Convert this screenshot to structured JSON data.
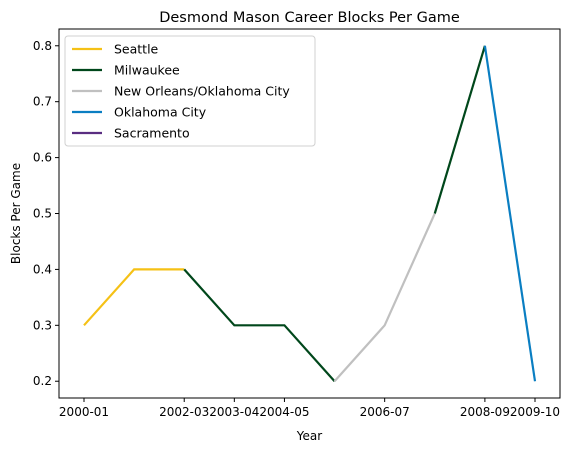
{
  "chart_data": {
    "type": "line",
    "title": "Desmond Mason Career Blocks Per Game",
    "xlabel": "Year",
    "ylabel": "Blocks Per Game",
    "x": [
      "2000-01",
      "2001-02",
      "2002-03",
      "2003-04",
      "2004-05",
      "2005-06",
      "2006-07",
      "2007-08",
      "2008-09",
      "2009-10"
    ],
    "x_ticks": [
      "2000-01",
      "2002-03",
      "2003-04",
      "2004-05",
      "2006-07",
      "2008-09",
      "2009-10"
    ],
    "y_ticks": [
      "0.2",
      "0.3",
      "0.4",
      "0.5",
      "0.6",
      "0.7",
      "0.8"
    ],
    "ylim": [
      0.17,
      0.83
    ],
    "grid": false,
    "legend_position": "top-left",
    "series": [
      {
        "name": "Seattle",
        "color": "#f5c116",
        "points": [
          [
            "2000-01",
            0.3
          ],
          [
            "2001-02",
            0.4
          ],
          [
            "2002-03",
            0.4
          ]
        ]
      },
      {
        "name": "Milwaukee",
        "color": "#00471b",
        "points": [
          [
            "2002-03",
            0.4
          ],
          [
            "2003-04",
            0.3
          ],
          [
            "2004-05",
            0.3
          ],
          [
            "2005-06",
            0.2
          ]
        ]
      },
      {
        "name": "New Orleans/Oklahoma City",
        "color": "#c0c0c0",
        "points": [
          [
            "2005-06",
            0.2
          ],
          [
            "2006-07",
            0.3
          ],
          [
            "2007-08",
            0.5
          ]
        ]
      },
      {
        "name": "Milwaukee",
        "color": "#00471b",
        "points": [
          [
            "2007-08",
            0.5
          ],
          [
            "2008-09",
            0.8
          ]
        ],
        "legend": false
      },
      {
        "name": "Oklahoma City",
        "color": "#0a7ec2",
        "points": [
          [
            "2008-09",
            0.8
          ],
          [
            "2009-10",
            0.2
          ]
        ]
      },
      {
        "name": "Sacramento",
        "color": "#5a2d81",
        "points": []
      }
    ],
    "legend": [
      "Seattle",
      "Milwaukee",
      "New Orleans/Oklahoma City",
      "Oklahoma City",
      "Sacramento"
    ]
  }
}
